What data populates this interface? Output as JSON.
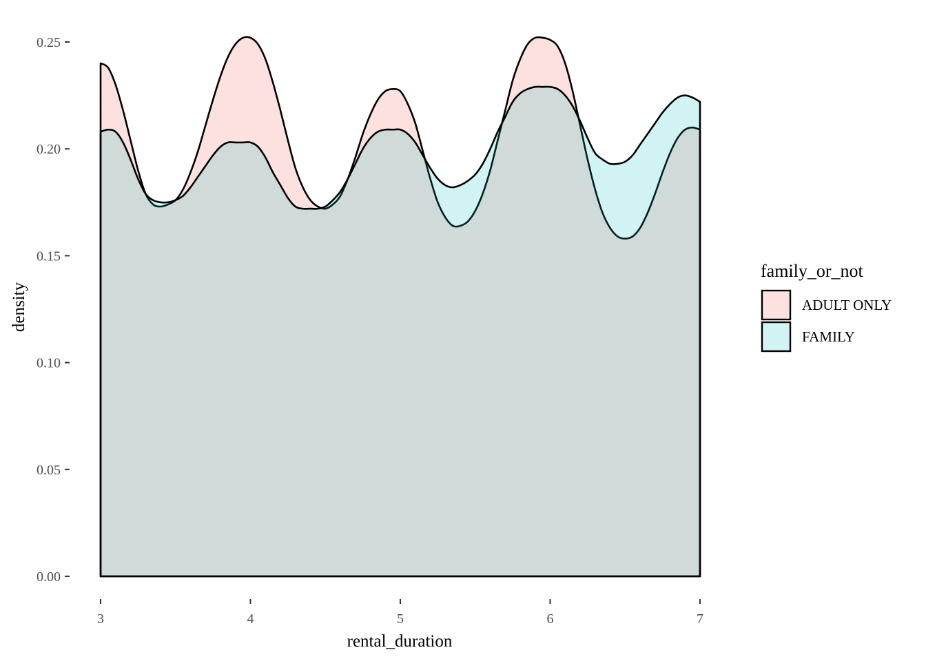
{
  "chart_data": {
    "type": "area",
    "subtype": "density",
    "title": "",
    "xlabel": "rental_duration",
    "ylabel": "density",
    "xlim": [
      3,
      7
    ],
    "ylim": [
      0,
      0.25
    ],
    "x_ticks": [
      3,
      4,
      5,
      6,
      7
    ],
    "x_tick_labels": [
      "3",
      "4",
      "5",
      "6",
      "7"
    ],
    "y_ticks": [
      0,
      0.05,
      0.1,
      0.15,
      0.2,
      0.25
    ],
    "y_tick_labels": [
      "0.00",
      "0.05",
      "0.10",
      "0.15",
      "0.20",
      "0.25"
    ],
    "grid": false,
    "legend": {
      "title": "family_or_not",
      "position": "right"
    },
    "series": [
      {
        "name": "ADULT ONLY",
        "color": "#F8766D",
        "fill_opacity": 0.22,
        "x": [
          3.0,
          3.05,
          3.1,
          3.15,
          3.2,
          3.25,
          3.3,
          3.35,
          3.4,
          3.45,
          3.5,
          3.55,
          3.6,
          3.65,
          3.7,
          3.75,
          3.8,
          3.85,
          3.9,
          3.95,
          4.0,
          4.05,
          4.1,
          4.15,
          4.2,
          4.25,
          4.3,
          4.35,
          4.4,
          4.45,
          4.5,
          4.55,
          4.6,
          4.65,
          4.7,
          4.75,
          4.8,
          4.85,
          4.9,
          4.95,
          5.0,
          5.05,
          5.1,
          5.15,
          5.2,
          5.25,
          5.3,
          5.35,
          5.4,
          5.45,
          5.5,
          5.55,
          5.6,
          5.65,
          5.7,
          5.75,
          5.8,
          5.85,
          5.9,
          5.95,
          6.0,
          6.05,
          6.1,
          6.15,
          6.2,
          6.25,
          6.3,
          6.35,
          6.4,
          6.45,
          6.5,
          6.55,
          6.6,
          6.65,
          6.7,
          6.75,
          6.8,
          6.85,
          6.9,
          6.95,
          7.0
        ],
        "y": [
          0.24,
          0.238,
          0.23,
          0.218,
          0.204,
          0.19,
          0.179,
          0.174,
          0.173,
          0.174,
          0.176,
          0.181,
          0.189,
          0.199,
          0.211,
          0.223,
          0.234,
          0.243,
          0.249,
          0.252,
          0.252,
          0.249,
          0.242,
          0.231,
          0.218,
          0.204,
          0.191,
          0.182,
          0.176,
          0.173,
          0.172,
          0.174,
          0.178,
          0.186,
          0.196,
          0.207,
          0.216,
          0.223,
          0.227,
          0.228,
          0.227,
          0.221,
          0.212,
          0.199,
          0.186,
          0.175,
          0.168,
          0.164,
          0.164,
          0.166,
          0.171,
          0.179,
          0.19,
          0.204,
          0.218,
          0.232,
          0.242,
          0.249,
          0.252,
          0.252,
          0.251,
          0.248,
          0.24,
          0.227,
          0.211,
          0.195,
          0.181,
          0.17,
          0.163,
          0.159,
          0.158,
          0.159,
          0.163,
          0.17,
          0.179,
          0.189,
          0.198,
          0.205,
          0.209,
          0.21,
          0.209
        ]
      },
      {
        "name": "FAMILY",
        "color": "#00BFC4",
        "fill_opacity": 0.18,
        "x": [
          3.0,
          3.05,
          3.1,
          3.15,
          3.2,
          3.25,
          3.3,
          3.35,
          3.4,
          3.45,
          3.5,
          3.55,
          3.6,
          3.65,
          3.7,
          3.75,
          3.8,
          3.85,
          3.9,
          3.95,
          4.0,
          4.05,
          4.1,
          4.15,
          4.2,
          4.25,
          4.3,
          4.35,
          4.4,
          4.45,
          4.5,
          4.55,
          4.6,
          4.65,
          4.7,
          4.75,
          4.8,
          4.85,
          4.9,
          4.95,
          5.0,
          5.05,
          5.1,
          5.15,
          5.2,
          5.25,
          5.3,
          5.35,
          5.4,
          5.45,
          5.5,
          5.55,
          5.6,
          5.65,
          5.7,
          5.75,
          5.8,
          5.85,
          5.9,
          5.95,
          6.0,
          6.05,
          6.1,
          6.15,
          6.2,
          6.25,
          6.3,
          6.35,
          6.4,
          6.45,
          6.5,
          6.55,
          6.6,
          6.65,
          6.7,
          6.75,
          6.8,
          6.85,
          6.9,
          6.95,
          7.0
        ],
        "y": [
          0.208,
          0.209,
          0.208,
          0.203,
          0.195,
          0.186,
          0.179,
          0.176,
          0.175,
          0.175,
          0.176,
          0.178,
          0.182,
          0.187,
          0.192,
          0.197,
          0.201,
          0.203,
          0.203,
          0.203,
          0.203,
          0.201,
          0.196,
          0.189,
          0.183,
          0.177,
          0.173,
          0.172,
          0.172,
          0.172,
          0.173,
          0.176,
          0.18,
          0.186,
          0.193,
          0.2,
          0.205,
          0.208,
          0.209,
          0.209,
          0.209,
          0.207,
          0.203,
          0.197,
          0.191,
          0.186,
          0.183,
          0.182,
          0.183,
          0.185,
          0.188,
          0.193,
          0.2,
          0.208,
          0.215,
          0.222,
          0.226,
          0.228,
          0.229,
          0.229,
          0.229,
          0.228,
          0.225,
          0.22,
          0.213,
          0.205,
          0.198,
          0.195,
          0.193,
          0.193,
          0.194,
          0.197,
          0.202,
          0.207,
          0.212,
          0.217,
          0.221,
          0.224,
          0.225,
          0.224,
          0.222
        ]
      }
    ]
  }
}
